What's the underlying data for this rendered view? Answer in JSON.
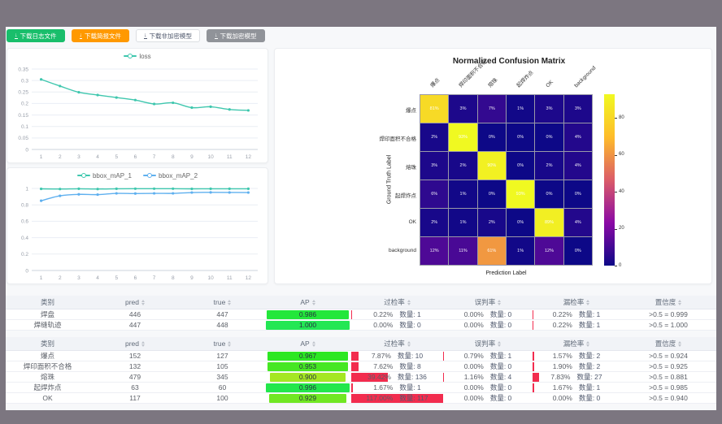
{
  "toolbar": {
    "buttons": [
      {
        "label": "下载日志文件",
        "icon": "download-icon",
        "bg": "#19be6b",
        "fg": "#ffffff",
        "border": "#19be6b"
      },
      {
        "label": "下载简报文件",
        "icon": "download-icon",
        "bg": "#ff9900",
        "fg": "#ffffff",
        "border": "#ff9900"
      },
      {
        "label": "下载非加密模型",
        "icon": "download-icon",
        "bg": "#ffffff",
        "fg": "#515a6e",
        "border": "#dcdee2"
      },
      {
        "label": "下载加密模型",
        "icon": "download-icon",
        "bg": "#909399",
        "fg": "#ffffff",
        "border": "#909399"
      }
    ]
  },
  "chart_data": [
    {
      "type": "line",
      "title": "loss",
      "x": [
        1,
        2,
        3,
        4,
        5,
        6,
        7,
        8,
        9,
        10,
        11,
        12
      ],
      "yticks": [
        0,
        0.05,
        0.1,
        0.15,
        0.2,
        0.25,
        0.3,
        0.35
      ],
      "ylim": [
        0,
        0.35
      ],
      "grid": true,
      "legend_position": "top",
      "series": [
        {
          "name": "loss",
          "color": "#3fc7ae",
          "values": [
            0.305,
            0.276,
            0.249,
            0.237,
            0.226,
            0.215,
            0.198,
            0.203,
            0.182,
            0.186,
            0.174,
            0.17
          ]
        }
      ]
    },
    {
      "type": "line",
      "title": "bbox_mAP",
      "x": [
        1,
        2,
        3,
        4,
        5,
        6,
        7,
        8,
        9,
        10,
        11,
        12
      ],
      "yticks": [
        0,
        0.2,
        0.4,
        0.6,
        0.8,
        1
      ],
      "ylim": [
        0,
        1
      ],
      "grid": true,
      "legend_position": "top",
      "series": [
        {
          "name": "bbox_mAP_1",
          "color": "#3fc7ae",
          "values": [
            0.995,
            0.993,
            0.996,
            0.993,
            0.996,
            0.997,
            0.997,
            0.997,
            0.995,
            0.996,
            0.996,
            0.996
          ]
        },
        {
          "name": "bbox_mAP_2",
          "color": "#5fb0ef",
          "values": [
            0.85,
            0.91,
            0.928,
            0.925,
            0.94,
            0.938,
            0.94,
            0.94,
            0.95,
            0.952,
            0.951,
            0.95
          ]
        }
      ]
    },
    {
      "type": "heatmap",
      "title": "Normalized Confusion Matrix",
      "xlabel": "Prediction Label",
      "ylabel": "Ground Truth Label",
      "labels": [
        "爆点",
        "焊印面积不合格",
        "熔珠",
        "起焊炸点",
        "OK",
        "background"
      ],
      "unit": "%",
      "vmax": 93,
      "colorbar_ticks": [
        0,
        20,
        40,
        60,
        80
      ],
      "rows": [
        [
          81,
          3,
          7,
          1,
          3,
          3
        ],
        [
          2,
          93,
          0,
          0,
          0,
          4
        ],
        [
          3,
          2,
          90,
          0,
          2,
          4
        ],
        [
          6,
          1,
          0,
          93,
          0,
          0
        ],
        [
          2,
          1,
          2,
          0,
          89,
          4
        ],
        [
          12,
          11,
          61,
          1,
          12,
          0
        ]
      ]
    }
  ],
  "tables": {
    "headers": [
      {
        "key": "cls",
        "label": "类别",
        "sortable": false
      },
      {
        "key": "pred",
        "label": "pred",
        "sortable": true
      },
      {
        "key": "true",
        "label": "true",
        "sortable": true
      },
      {
        "key": "ap",
        "label": "AP",
        "sortable": true
      },
      {
        "key": "over",
        "label": "过检率",
        "sortable": true
      },
      {
        "key": "mis",
        "label": "误判率",
        "sortable": true
      },
      {
        "key": "miss",
        "label": "漏检率",
        "sortable": true
      },
      {
        "key": "conf",
        "label": "置信度",
        "sortable": true
      }
    ],
    "count_label": "数量:",
    "conf_prefix": ">0.5 =",
    "bar_red": "#f22c4e",
    "groups": [
      {
        "rows": [
          {
            "cls": "焊盘",
            "pred": 446,
            "true": 447,
            "ap": "0.986",
            "ap_val": 0.986,
            "over_pct": 0.22,
            "over_cnt": 1,
            "mis_pct": 0.0,
            "mis_cnt": 0,
            "miss_pct": 0.22,
            "miss_cnt": 1,
            "conf": "0.999"
          },
          {
            "cls": "焊缝轨迹",
            "pred": 447,
            "true": 448,
            "ap": "1.000",
            "ap_val": 1.0,
            "over_pct": 0.0,
            "over_cnt": 0,
            "mis_pct": 0.0,
            "mis_cnt": 0,
            "miss_pct": 0.22,
            "miss_cnt": 1,
            "conf": "1.000"
          }
        ]
      },
      {
        "rows": [
          {
            "cls": "爆点",
            "pred": 152,
            "true": 127,
            "ap": "0.967",
            "ap_val": 0.967,
            "over_pct": 7.87,
            "over_cnt": 10,
            "mis_pct": 0.79,
            "mis_cnt": 1,
            "miss_pct": 1.57,
            "miss_cnt": 2,
            "conf": "0.924"
          },
          {
            "cls": "焊印面积不合格",
            "pred": 132,
            "true": 105,
            "ap": "0.953",
            "ap_val": 0.953,
            "over_pct": 7.62,
            "over_cnt": 8,
            "mis_pct": 0.0,
            "mis_cnt": 0,
            "miss_pct": 1.9,
            "miss_cnt": 2,
            "conf": "0.925"
          },
          {
            "cls": "熔珠",
            "pred": 479,
            "true": 345,
            "ap": "0.900",
            "ap_val": 0.9,
            "over_pct": 39.42,
            "over_cnt": 136,
            "mis_pct": 1.16,
            "mis_cnt": 4,
            "miss_pct": 7.83,
            "miss_cnt": 27,
            "conf": "0.881"
          },
          {
            "cls": "起焊炸点",
            "pred": 63,
            "true": 60,
            "ap": "0.996",
            "ap_val": 0.996,
            "over_pct": 1.67,
            "over_cnt": 1,
            "mis_pct": 0.0,
            "mis_cnt": 0,
            "miss_pct": 1.67,
            "miss_cnt": 1,
            "conf": "0.985"
          },
          {
            "cls": "OK",
            "pred": 117,
            "true": 100,
            "ap": "0.929",
            "ap_val": 0.929,
            "over_pct": 117.0,
            "over_cnt": 117,
            "mis_pct": 0.0,
            "mis_cnt": 0,
            "miss_pct": 0.0,
            "miss_cnt": 0,
            "conf": "0.940"
          }
        ]
      }
    ]
  }
}
